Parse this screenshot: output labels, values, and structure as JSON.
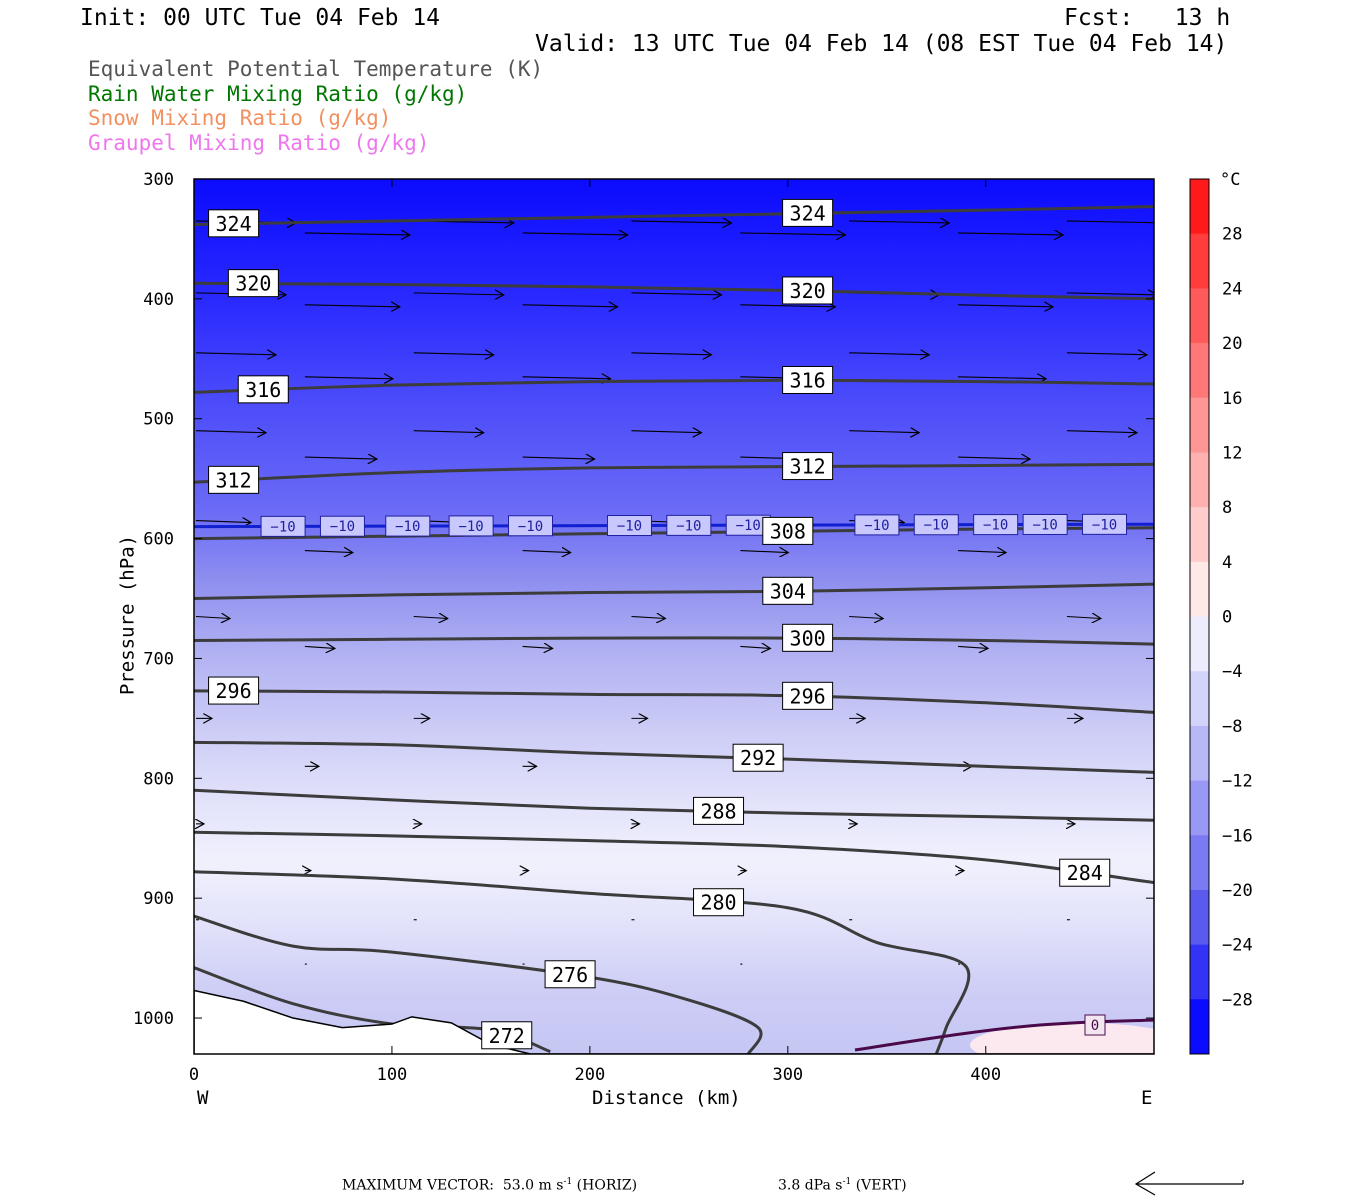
{
  "header": {
    "init": "Init: 00 UTC Tue 04 Feb 14",
    "fcst": "Fcst:   13 h",
    "valid": "Valid: 13 UTC Tue 04 Feb 14 (08 EST Tue 04 Feb 14)"
  },
  "legend": [
    {
      "text": "Equivalent Potential Temperature (K)",
      "color": "#555555"
    },
    {
      "text": "Rain Water Mixing Ratio (g/kg)",
      "color": "#007700"
    },
    {
      "text": "Snow Mixing Ratio (g/kg)",
      "color": "#f29060"
    },
    {
      "text": "Graupel Mixing Ratio (g/kg)",
      "color": "#ee77ee"
    }
  ],
  "chart_data": {
    "type": "heatmap",
    "xlabel": "Distance (km)",
    "ylabel": "Pressure (hPa)",
    "xlim": [
      0,
      485
    ],
    "ylim": [
      1030,
      300
    ],
    "x_ticks": [
      0,
      100,
      200,
      300,
      400
    ],
    "y_ticks": [
      300,
      400,
      500,
      600,
      700,
      800,
      900,
      1000
    ],
    "x_end_labels": {
      "left": "W",
      "right": "E"
    },
    "colorbar": {
      "unit": "°C",
      "ticks": [
        28,
        24,
        20,
        16,
        12,
        8,
        4,
        0,
        -4,
        -8,
        -12,
        -16,
        -20,
        -24,
        -28
      ],
      "range": [
        -32,
        32
      ]
    },
    "theta_e_contours": [
      {
        "value": 324,
        "label": "324",
        "pts": [
          [
            0,
            338
          ],
          [
            100,
            335
          ],
          [
            200,
            332
          ],
          [
            300,
            329
          ],
          [
            400,
            326
          ],
          [
            485,
            323
          ]
        ]
      },
      {
        "value": 320,
        "label": "320",
        "pts": [
          [
            0,
            387
          ],
          [
            100,
            388
          ],
          [
            200,
            390
          ],
          [
            300,
            393
          ],
          [
            400,
            397
          ],
          [
            485,
            400
          ]
        ]
      },
      {
        "value": 316,
        "label": "316",
        "pts": [
          [
            0,
            478
          ],
          [
            100,
            472
          ],
          [
            200,
            469
          ],
          [
            300,
            468
          ],
          [
            400,
            469
          ],
          [
            485,
            471
          ]
        ]
      },
      {
        "value": 312,
        "label": "312",
        "pts": [
          [
            0,
            553
          ],
          [
            100,
            545
          ],
          [
            200,
            541
          ],
          [
            300,
            540
          ],
          [
            400,
            539
          ],
          [
            485,
            538
          ]
        ]
      },
      {
        "value": 308,
        "label": "308",
        "pts": [
          [
            0,
            600
          ],
          [
            100,
            598
          ],
          [
            200,
            596
          ],
          [
            300,
            594
          ],
          [
            400,
            592
          ],
          [
            485,
            591
          ]
        ]
      },
      {
        "value": 304,
        "label": "304",
        "pts": [
          [
            0,
            650
          ],
          [
            100,
            647
          ],
          [
            200,
            645
          ],
          [
            300,
            644
          ],
          [
            400,
            641
          ],
          [
            485,
            638
          ]
        ]
      },
      {
        "value": 300,
        "label": "300",
        "pts": [
          [
            0,
            685
          ],
          [
            100,
            684
          ],
          [
            200,
            683
          ],
          [
            300,
            683
          ],
          [
            400,
            685
          ],
          [
            485,
            688
          ]
        ]
      },
      {
        "value": 296,
        "label": "296",
        "pts": [
          [
            0,
            727
          ],
          [
            100,
            728
          ],
          [
            200,
            730
          ],
          [
            300,
            731
          ],
          [
            400,
            737
          ],
          [
            485,
            745
          ]
        ]
      },
      {
        "value": 292,
        "label": "292",
        "pts": [
          [
            0,
            770
          ],
          [
            100,
            772
          ],
          [
            200,
            779
          ],
          [
            300,
            784
          ],
          [
            400,
            790
          ],
          [
            485,
            795
          ]
        ]
      },
      {
        "value": 288,
        "label": "288",
        "pts": [
          [
            0,
            810
          ],
          [
            100,
            818
          ],
          [
            200,
            825
          ],
          [
            300,
            829
          ],
          [
            400,
            832
          ],
          [
            485,
            835
          ]
        ]
      },
      {
        "value": 284,
        "label": "284",
        "pts": [
          [
            0,
            845
          ],
          [
            100,
            848
          ],
          [
            200,
            852
          ],
          [
            300,
            857
          ],
          [
            400,
            868
          ],
          [
            485,
            887
          ]
        ]
      },
      {
        "value": 280,
        "label": "280",
        "pts": [
          [
            0,
            878
          ],
          [
            100,
            884
          ],
          [
            200,
            896
          ],
          [
            300,
            908
          ],
          [
            345,
            937
          ],
          [
            390,
            957
          ],
          [
            380,
            1008
          ],
          [
            375,
            1030
          ]
        ]
      },
      {
        "value": 276,
        "label": "276",
        "pts": [
          [
            0,
            915
          ],
          [
            50,
            940
          ],
          [
            100,
            945
          ],
          [
            200,
            966
          ],
          [
            250,
            985
          ],
          [
            285,
            1008
          ],
          [
            280,
            1030
          ]
        ]
      },
      {
        "value": 272,
        "label": "272",
        "pts": [
          [
            0,
            958
          ],
          [
            50,
            988
          ],
          [
            100,
            1005
          ],
          [
            150,
            1010
          ],
          [
            180,
            1028
          ]
        ]
      }
    ],
    "isotherm_minus10": {
      "value": -10,
      "label": "-10",
      "pressure_hPa": [
        590,
        588
      ]
    },
    "isotherm_zero": {
      "value": 0,
      "label": "0"
    },
    "wind_vectors": "west-to-east horizontal wind vectors, strongest aloft",
    "max_vector": {
      "prefix": "MAXIMUM VECTOR:",
      "horiz_value": "53.0",
      "horiz_unit": "m s",
      "horiz_tag": "(HORIZ)",
      "vert_value": "3.8",
      "vert_unit": "dPa s",
      "vert_tag": "(VERT)",
      "exp": "-1"
    }
  }
}
